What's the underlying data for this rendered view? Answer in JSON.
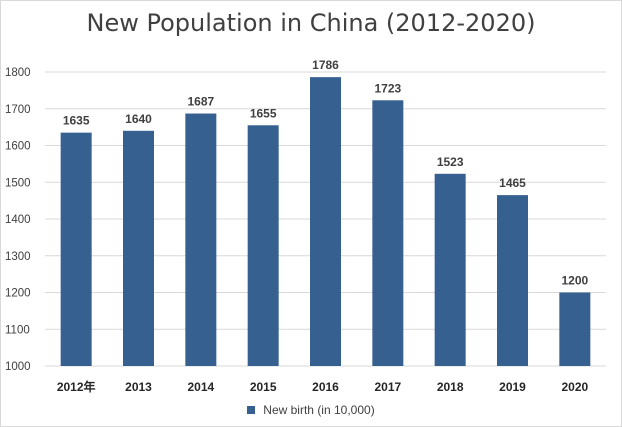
{
  "chart_data": {
    "type": "bar",
    "title": "New Population in China (2012-2020)",
    "categories": [
      "2012年",
      "2013",
      "2014",
      "2015",
      "2016",
      "2017",
      "2018",
      "2019",
      "2020"
    ],
    "series": [
      {
        "name": "New birth (in 10,000)",
        "values": [
          1635,
          1640,
          1687,
          1655,
          1786,
          1723,
          1523,
          1465,
          1200
        ]
      }
    ],
    "ylim": [
      1000,
      1800
    ],
    "yticks": [
      1000,
      1100,
      1200,
      1300,
      1400,
      1500,
      1600,
      1700,
      1800
    ],
    "grid": true,
    "legend_position": "bottom",
    "colors": {
      "bar": "#35608f",
      "grid": "#d9d9d9"
    }
  }
}
